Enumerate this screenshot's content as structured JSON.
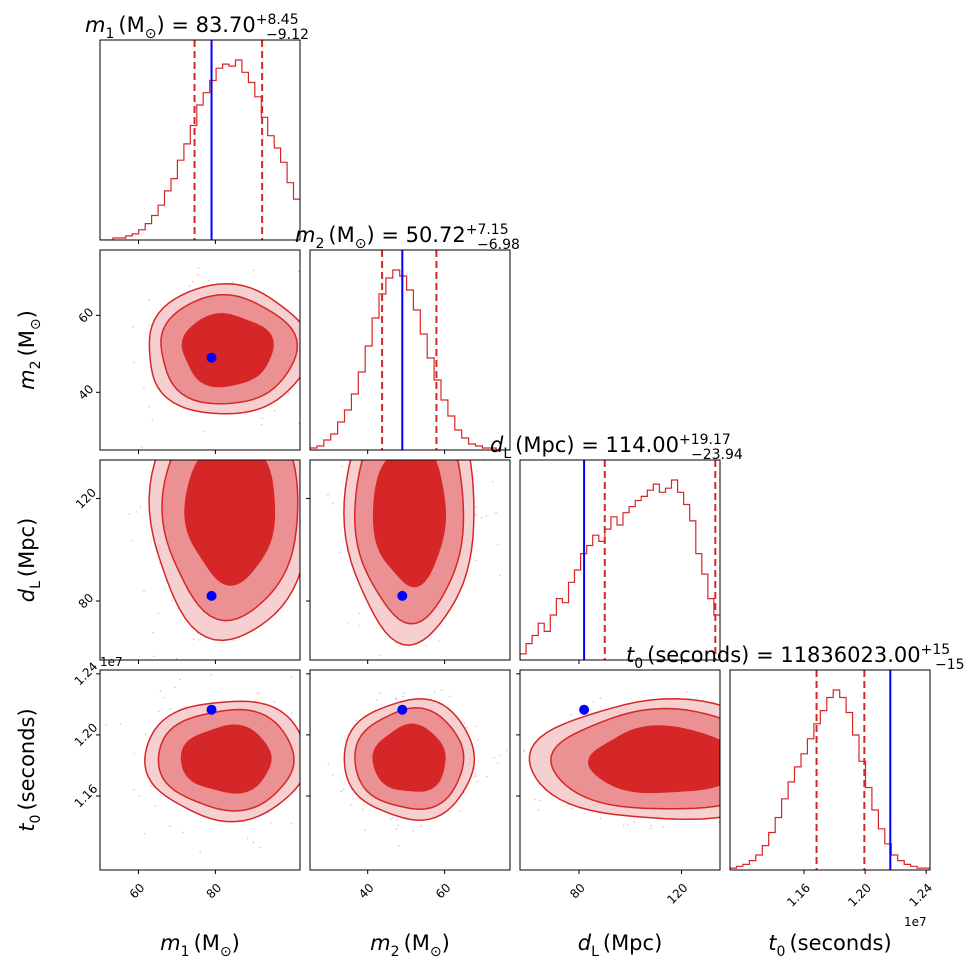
{
  "colors": {
    "posterior": "#d62728",
    "truth": "#0000ff",
    "contour_fill_inner": "#d62728",
    "contour_fill_outer": "#eb9093",
    "contour_fill_edge": "#f6cfd0"
  },
  "parameters": [
    {
      "key": "m1",
      "label_main": "m",
      "label_sub": "1",
      "label_unit": "(M",
      "label_unit_sub": "⊙",
      "label_unit_close": ")"
    },
    {
      "key": "m2",
      "label_main": "m",
      "label_sub": "2",
      "label_unit": "(M",
      "label_unit_sub": "⊙",
      "label_unit_close": ")"
    },
    {
      "key": "dL",
      "label_main": "d",
      "label_sub": "L",
      "label_unit": "(Mpc)",
      "label_unit_sub": "",
      "label_unit_close": ""
    },
    {
      "key": "t0",
      "label_main": "t",
      "label_sub": "0",
      "label_unit": "(seconds)",
      "label_unit_sub": "",
      "label_unit_close": ""
    }
  ],
  "titles": [
    {
      "value": " = 83.70",
      "plus": "+8.45",
      "minus": "−9.12"
    },
    {
      "value": " = 50.72",
      "plus": "+7.15",
      "minus": "−6.98"
    },
    {
      "value": " = 114.00",
      "plus": "+19.17",
      "minus": "−23.94"
    },
    {
      "value": " = 11836023.00",
      "plus": "+15",
      "minus": "−15"
    }
  ],
  "offset_text": "1e7",
  "chart_data": {
    "type": "corner",
    "parameters": [
      "m1",
      "m2",
      "dL",
      "t0"
    ],
    "ranges": {
      "m1": [
        50,
        102
      ],
      "m2": [
        25,
        77
      ],
      "dL": [
        57,
        135
      ],
      "t0": [
        11.115,
        12.425
      ]
    },
    "ticks": {
      "m1": [
        {
          "v": 60,
          "label": "60"
        },
        {
          "v": 80,
          "label": "80"
        }
      ],
      "m2": [
        {
          "v": 40,
          "label": "40"
        },
        {
          "v": 60,
          "label": "60"
        }
      ],
      "dL": [
        {
          "v": 80,
          "label": "80"
        },
        {
          "v": 120,
          "label": "120"
        }
      ],
      "t0": [
        {
          "v": 11.6,
          "label": "1.16"
        },
        {
          "v": 12.0,
          "label": "1.20"
        },
        {
          "v": 12.4,
          "label": "1.24"
        }
      ]
    },
    "truths": {
      "m1": 79,
      "m2": 49,
      "dL": 82,
      "t0": 12.165
    },
    "quantiles": {
      "m1": [
        74.58,
        92.15
      ],
      "m2": [
        43.74,
        57.87
      ],
      "dL": [
        90.06,
        133.17
      ],
      "t0": [
        11.682,
        11.995
      ]
    },
    "histograms": {
      "m1": [
        0,
        0,
        1,
        1,
        2,
        3,
        5,
        8,
        12,
        17,
        24,
        30,
        39,
        47,
        56,
        66,
        72,
        78,
        84,
        86,
        85,
        88,
        82,
        77,
        70,
        60,
        51,
        45,
        38,
        28,
        20
      ],
      "m2": [
        1,
        2,
        5,
        8,
        14,
        20,
        28,
        39,
        52,
        66,
        78,
        86,
        90,
        87,
        80,
        70,
        58,
        46,
        35,
        25,
        17,
        10,
        6,
        3,
        2,
        1,
        1,
        0,
        0
      ],
      "dL": [
        3,
        8,
        12,
        18,
        14,
        22,
        30,
        28,
        38,
        44,
        52,
        56,
        61,
        58,
        64,
        70,
        66,
        72,
        75,
        78,
        80,
        83,
        86,
        82,
        84,
        88,
        82,
        76,
        68,
        52,
        42,
        30,
        22
      ],
      "t0": [
        1,
        2,
        3,
        5,
        8,
        13,
        20,
        28,
        38,
        47,
        55,
        62,
        70,
        78,
        85,
        92,
        96,
        92,
        84,
        72,
        58,
        44,
        32,
        22,
        14,
        8,
        5,
        3,
        2,
        1,
        1
      ]
    },
    "contours": {
      "m1_m2": {
        "cx": 83,
        "cy": 51,
        "sx": 8.6,
        "sy": 6.9
      },
      "m1_dL": {
        "cx": 84,
        "cy": 115,
        "sx": 8.6,
        "sy": 20.0
      },
      "m2_dL": {
        "cx": 51,
        "cy": 114,
        "sx": 6.9,
        "sy": 20.0
      },
      "m1_t0": {
        "cx": 83,
        "cy": 11.84,
        "sx": 8.6,
        "sy": 0.16
      },
      "m2_t0": {
        "cx": 51,
        "cy": 11.84,
        "sx": 6.9,
        "sy": 0.16
      },
      "dL_t0": {
        "cx": 113,
        "cy": 11.83,
        "sx": 21.0,
        "sy": 0.16
      }
    }
  }
}
